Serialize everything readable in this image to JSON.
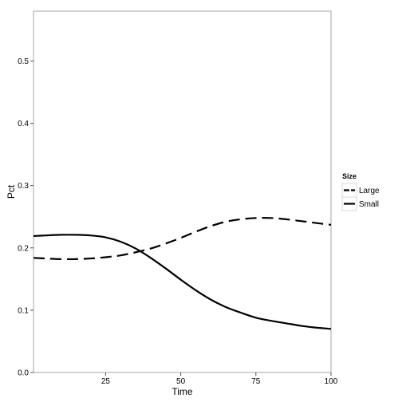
{
  "chart_data": {
    "type": "line",
    "title": "",
    "xlabel": "Time",
    "ylabel": "Pct",
    "xlim": [
      1,
      100
    ],
    "ylim": [
      0,
      0.58
    ],
    "x_ticks": [
      25,
      50,
      75,
      100
    ],
    "y_ticks": [
      0.0,
      0.1,
      0.2,
      0.3,
      0.4,
      0.5
    ],
    "y_tick_labels": [
      "0.0",
      "0.1",
      "0.2",
      "0.3",
      "0.4",
      "0.5"
    ],
    "grid": false,
    "legend": {
      "title": "Size",
      "placement": "right",
      "entries": [
        "Large",
        "Small"
      ]
    },
    "series": [
      {
        "name": "Large",
        "line_style": "dashed",
        "color": "#000000",
        "x": [
          1,
          5,
          10,
          15,
          20,
          25,
          30,
          35,
          40,
          45,
          50,
          55,
          60,
          65,
          70,
          75,
          80,
          85,
          90,
          95,
          100
        ],
        "y": [
          0.184,
          0.183,
          0.182,
          0.182,
          0.183,
          0.185,
          0.188,
          0.193,
          0.199,
          0.207,
          0.216,
          0.226,
          0.235,
          0.242,
          0.246,
          0.248,
          0.248,
          0.246,
          0.243,
          0.24,
          0.237
        ]
      },
      {
        "name": "Small",
        "line_style": "solid",
        "color": "#000000",
        "x": [
          1,
          5,
          10,
          15,
          20,
          25,
          30,
          35,
          40,
          45,
          50,
          55,
          60,
          65,
          70,
          75,
          80,
          85,
          90,
          95,
          100
        ],
        "y": [
          0.219,
          0.22,
          0.221,
          0.221,
          0.22,
          0.217,
          0.21,
          0.199,
          0.184,
          0.167,
          0.149,
          0.132,
          0.117,
          0.105,
          0.096,
          0.088,
          0.083,
          0.079,
          0.075,
          0.072,
          0.07
        ]
      }
    ]
  }
}
